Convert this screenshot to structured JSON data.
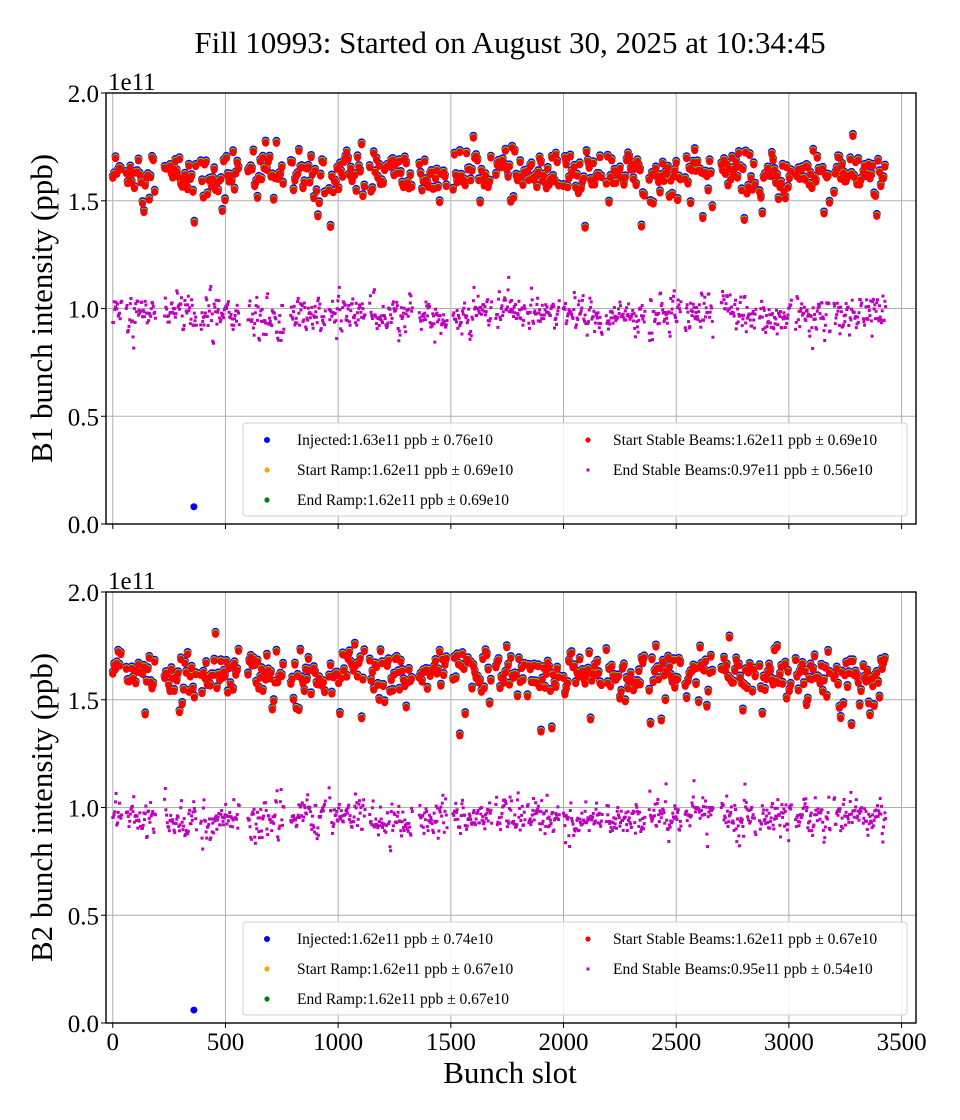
{
  "chart_data": [
    {
      "type": "scatter",
      "panel": "B1",
      "title": "Fill 10993: Started on August 30, 2025 at 10:34:45",
      "xlabel": "",
      "ylabel": "B1 bunch intensity (ppb)",
      "y_offset_label": "1e11",
      "xlim": [
        -30,
        3564
      ],
      "ylim": [
        0.0,
        2.0
      ],
      "x_ticks": [
        0,
        500,
        1000,
        1500,
        2000,
        2500,
        3000,
        3500
      ],
      "x_tick_labels_visible": false,
      "y_ticks": [
        0.0,
        0.5,
        1.0,
        1.5,
        2.0
      ],
      "y_tick_labels": [
        "0.0",
        "0.5",
        "1.0",
        "1.5",
        "2.0"
      ],
      "grid": true,
      "legend_placement": "lower-right",
      "legend_columns": 2,
      "series": [
        {
          "name": "Injected",
          "label": "Injected:1.63e11 ppb ± 0.76e10",
          "color": "#0000ff",
          "mean": 1.63,
          "std": 0.076,
          "outliers": [
            [
              360,
              0.08
            ]
          ]
        },
        {
          "name": "Start Ramp",
          "label": "Start Ramp:1.62e11 ppb ± 0.69e10",
          "color": "#ffa500",
          "mean": 1.62,
          "std": 0.069
        },
        {
          "name": "End Ramp",
          "label": "End Ramp:1.62e11 ppb ± 0.69e10",
          "color": "#008000",
          "mean": 1.62,
          "std": 0.069
        },
        {
          "name": "Start Stable Beams",
          "label": "Start Stable Beams:1.62e11 ppb ± 0.69e10",
          "color": "#ff0000",
          "mean": 1.62,
          "std": 0.069
        },
        {
          "name": "End Stable Beams",
          "label": "End Stable Beams:0.97e11 ppb ± 0.56e10",
          "color": "#bf00bf",
          "mean": 0.97,
          "std": 0.056
        }
      ],
      "bunch_trains": [
        [
          0,
          40
        ],
        [
          60,
          190
        ],
        [
          230,
          370
        ],
        [
          390,
          560
        ],
        [
          600,
          760
        ],
        [
          790,
          940
        ],
        [
          960,
          1120
        ],
        [
          1140,
          1330
        ],
        [
          1360,
          1480
        ],
        [
          1510,
          1680
        ],
        [
          1700,
          1830
        ],
        [
          1840,
          1980
        ],
        [
          2000,
          2170
        ],
        [
          2190,
          2360
        ],
        [
          2380,
          2520
        ],
        [
          2540,
          2660
        ],
        [
          2700,
          2850
        ],
        [
          2870,
          3010
        ],
        [
          3030,
          3180
        ],
        [
          3200,
          3320
        ],
        [
          3330,
          3430
        ]
      ]
    },
    {
      "type": "scatter",
      "panel": "B2",
      "title": "",
      "xlabel": "Bunch slot",
      "ylabel": "B2 bunch intensity (ppb)",
      "y_offset_label": "1e11",
      "xlim": [
        -30,
        3564
      ],
      "ylim": [
        0.0,
        2.0
      ],
      "x_ticks": [
        0,
        500,
        1000,
        1500,
        2000,
        2500,
        3000,
        3500
      ],
      "x_tick_labels": [
        "0",
        "500",
        "1000",
        "1500",
        "2000",
        "2500",
        "3000",
        "3500"
      ],
      "y_ticks": [
        0.0,
        0.5,
        1.0,
        1.5,
        2.0
      ],
      "y_tick_labels": [
        "0.0",
        "0.5",
        "1.0",
        "1.5",
        "2.0"
      ],
      "grid": true,
      "legend_placement": "lower-right",
      "legend_columns": 2,
      "series": [
        {
          "name": "Injected",
          "label": "Injected:1.62e11 ppb ± 0.74e10",
          "color": "#0000ff",
          "mean": 1.62,
          "std": 0.074,
          "outliers": [
            [
              360,
              0.06
            ]
          ]
        },
        {
          "name": "Start Ramp",
          "label": "Start Ramp:1.62e11 ppb ± 0.67e10",
          "color": "#ffa500",
          "mean": 1.62,
          "std": 0.067
        },
        {
          "name": "End Ramp",
          "label": "End Ramp:1.62e11 ppb ± 0.67e10",
          "color": "#008000",
          "mean": 1.62,
          "std": 0.067
        },
        {
          "name": "Start Stable Beams",
          "label": "Start Stable Beams:1.62e11 ppb ± 0.67e10",
          "color": "#ff0000",
          "mean": 1.62,
          "std": 0.067
        },
        {
          "name": "End Stable Beams",
          "label": "End Stable Beams:0.95e11 ppb ± 0.54e10",
          "color": "#bf00bf",
          "mean": 0.95,
          "std": 0.054
        }
      ],
      "bunch_trains": [
        [
          0,
          40
        ],
        [
          60,
          190
        ],
        [
          230,
          370
        ],
        [
          390,
          560
        ],
        [
          600,
          760
        ],
        [
          790,
          940
        ],
        [
          960,
          1120
        ],
        [
          1140,
          1330
        ],
        [
          1360,
          1480
        ],
        [
          1510,
          1680
        ],
        [
          1700,
          1830
        ],
        [
          1840,
          1980
        ],
        [
          2000,
          2170
        ],
        [
          2190,
          2360
        ],
        [
          2380,
          2520
        ],
        [
          2540,
          2660
        ],
        [
          2700,
          2850
        ],
        [
          2870,
          3010
        ],
        [
          3030,
          3180
        ],
        [
          3200,
          3320
        ],
        [
          3330,
          3430
        ]
      ]
    }
  ]
}
